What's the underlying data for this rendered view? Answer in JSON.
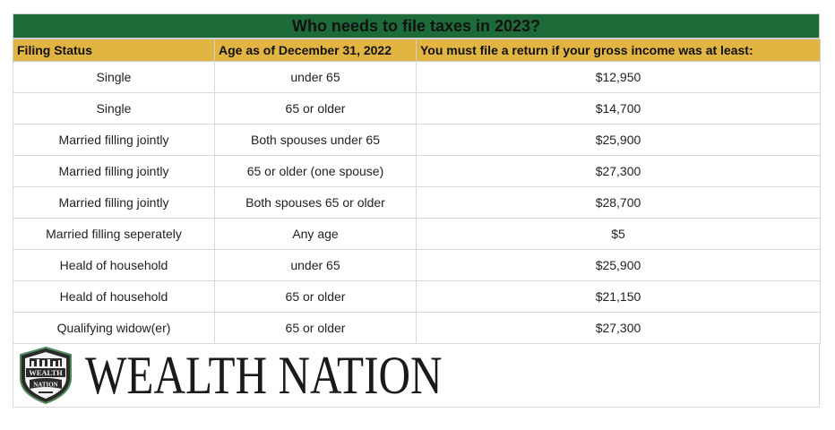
{
  "title": "Who needs to file taxes in 2023?",
  "headers": [
    "Filing Status",
    "Age as of December 31, 2022",
    "You must file a return if your gross income was at least:"
  ],
  "rows": [
    [
      "Single",
      "under 65",
      "$12,950"
    ],
    [
      "Single",
      "65 or older",
      "$14,700"
    ],
    [
      "Married filling jointly",
      "Both spouses under 65",
      "$25,900"
    ],
    [
      "Married filling jointly",
      "65 or older (one spouse)",
      "$27,300"
    ],
    [
      "Married filling jointly",
      "Both spouses 65 or older",
      "$28,700"
    ],
    [
      "Married filling seperately",
      "Any age",
      "$5"
    ],
    [
      "Heald of household",
      "under 65",
      "$25,900"
    ],
    [
      "Heald of household",
      "65 or older",
      "$21,150"
    ],
    [
      "Qualifying widow(er)",
      "65 or older",
      "$27,300"
    ]
  ],
  "logo": {
    "badge_line1": "WEALTH",
    "badge_line2": "NATION",
    "wordmark": "WEALTH NATION"
  },
  "colors": {
    "title_bg": "#1e6b3a",
    "header_bg": "#e2b441"
  }
}
